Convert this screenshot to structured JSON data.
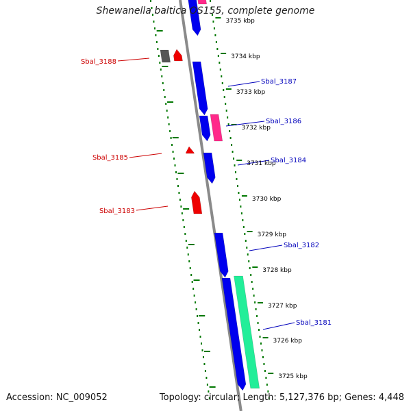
{
  "title": "Shewanella baltica OS155, complete genome",
  "footer": {
    "accession": "Accession: NC_009052",
    "summary": "Topology: circular; Length: 5,127,376 bp; Genes: 4,448"
  },
  "colors": {
    "forward_cds": "#0000ee",
    "reverse_cds": "#ee0000",
    "forward_label": "#0000bb",
    "reverse_label": "#cc0000",
    "pink_feature": "#ff2a8a",
    "green_feature": "#22ee99",
    "gray_feature": "#555555",
    "backbone": "#8a8a8a",
    "tick": "#007700"
  },
  "scale_labels": [
    "3735 kbp",
    "3734 kbp",
    "3733 kbp",
    "3732 kbp",
    "3731 kbp",
    "3730 kbp",
    "3729 kbp",
    "3728 kbp",
    "3727 kbp",
    "3726 kbp",
    "3725 kbp"
  ],
  "gene_labels": [
    {
      "id": "sbal3188",
      "text": "Sbal_3188",
      "strand": "reverse"
    },
    {
      "id": "sbal3187",
      "text": "Sbal_3187",
      "strand": "forward"
    },
    {
      "id": "sbal3186",
      "text": "Sbal_3186",
      "strand": "forward"
    },
    {
      "id": "sbal3185",
      "text": "Sbal_3185",
      "strand": "reverse"
    },
    {
      "id": "sbal3184",
      "text": "Sbal_3184",
      "strand": "forward"
    },
    {
      "id": "sbal3183",
      "text": "Sbal_3183",
      "strand": "reverse"
    },
    {
      "id": "sbal3182",
      "text": "Sbal_3182",
      "strand": "forward"
    },
    {
      "id": "sbal3181",
      "text": "Sbal_3181",
      "strand": "forward"
    }
  ]
}
